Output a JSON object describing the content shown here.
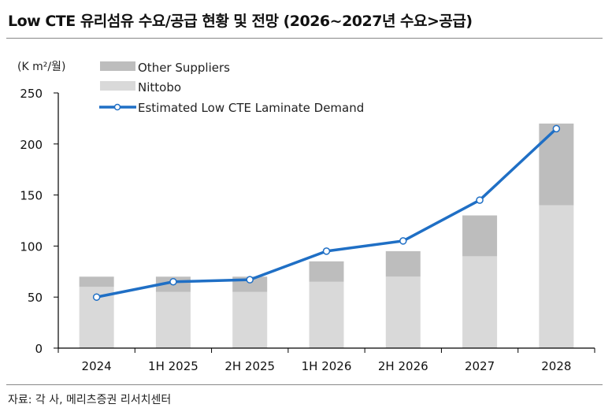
{
  "header": {
    "title": "Low CTE 유리섬유 수요/공급 현황 및 전망 (2026~2027년 수요>공급)"
  },
  "footer": {
    "source": "자료: 각 사, 메리츠증권 리서치센터"
  },
  "colors": {
    "other_suppliers": "#bdbdbd",
    "nittobo": "#d9d9d9",
    "demand_line": "#1f6fc5",
    "axis": "#000000"
  },
  "chart_data": {
    "type": "bar",
    "stacked": true,
    "title": "Low CTE 유리섬유 수요/공급 현황 및 전망 (2026~2027년 수요>공급)",
    "ylabel": "(K m²/월)",
    "xlabel": "",
    "ylim": [
      0,
      250
    ],
    "yticks": [
      0,
      50,
      100,
      150,
      200,
      250
    ],
    "grid": false,
    "legend_position": "top-left",
    "categories": [
      "2024",
      "1H 2025",
      "2H 2025",
      "1H 2026",
      "2H 2026",
      "2027",
      "2028"
    ],
    "series": [
      {
        "name": "Nittobo",
        "type": "bar",
        "values": [
          60,
          55,
          55,
          65,
          70,
          90,
          140
        ]
      },
      {
        "name": "Other Suppliers",
        "type": "bar",
        "values": [
          10,
          15,
          15,
          20,
          25,
          40,
          80
        ]
      },
      {
        "name": "Estimated Low CTE Laminate Demand",
        "type": "line",
        "values": [
          50,
          65,
          67,
          95,
          105,
          145,
          215
        ]
      }
    ],
    "legend": [
      "Other Suppliers",
      "Nittobo",
      "Estimated Low CTE Laminate Demand"
    ]
  }
}
